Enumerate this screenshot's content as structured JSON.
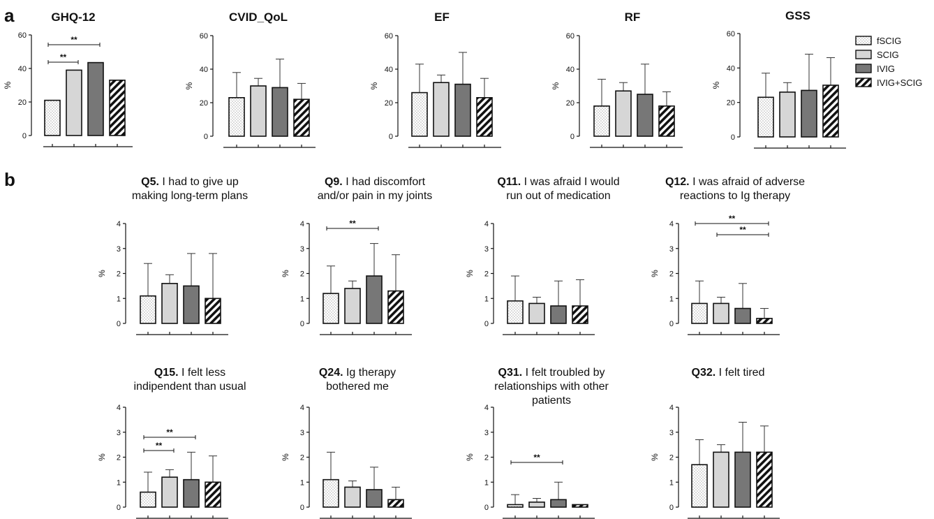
{
  "panel_labels": {
    "a": "a",
    "b": "b"
  },
  "legend": [
    {
      "label": "fSCIG",
      "pattern": "dots"
    },
    {
      "label": "SCIG",
      "pattern": "light"
    },
    {
      "label": "IVIG",
      "pattern": "dark"
    },
    {
      "label": "IVIG+SCIG",
      "pattern": "hatch"
    }
  ],
  "colors": {
    "light_gray": "#d6d6d6",
    "dark_gray": "#777777",
    "stroke": "#111111"
  },
  "chart_data": [
    {
      "id": "ghq12",
      "type": "bar",
      "panel": "a",
      "title": "GHQ-12",
      "title_bold": "",
      "ylabel": "%",
      "ylim": [
        0,
        60
      ],
      "yticks": [
        0,
        20,
        40,
        60
      ],
      "categories": [
        "fSCIG",
        "SCIG",
        "IVIG",
        "IVIG+SCIG"
      ],
      "values": [
        21,
        39,
        43.5,
        33
      ],
      "errors": [
        null,
        null,
        null,
        null
      ],
      "significance": [
        {
          "from": 0,
          "to": 2,
          "label": "**"
        },
        {
          "from": 0,
          "to": 1,
          "label": "**"
        }
      ]
    },
    {
      "id": "cvid_qol",
      "type": "bar",
      "panel": "a",
      "title": "CVID_QoL",
      "title_bold": "",
      "ylabel": "%",
      "ylim": [
        0,
        60
      ],
      "yticks": [
        0,
        20,
        40,
        60
      ],
      "categories": [
        "fSCIG",
        "SCIG",
        "IVIG",
        "IVIG+SCIG"
      ],
      "values": [
        23,
        30,
        29,
        22
      ],
      "errors": [
        15,
        4.5,
        17,
        9.5
      ],
      "significance": []
    },
    {
      "id": "ef",
      "type": "bar",
      "panel": "a",
      "title": "EF",
      "title_bold": "",
      "ylabel": "%",
      "ylim": [
        0,
        60
      ],
      "yticks": [
        0,
        20,
        40,
        60
      ],
      "categories": [
        "fSCIG",
        "SCIG",
        "IVIG",
        "IVIG+SCIG"
      ],
      "values": [
        26,
        32,
        31,
        23
      ],
      "errors": [
        17,
        4.5,
        19,
        11.5
      ],
      "significance": []
    },
    {
      "id": "rf",
      "type": "bar",
      "panel": "a",
      "title": "RF",
      "title_bold": "",
      "ylabel": "%",
      "ylim": [
        0,
        60
      ],
      "yticks": [
        0,
        20,
        40,
        60
      ],
      "categories": [
        "fSCIG",
        "SCIG",
        "IVIG",
        "IVIG+SCIG"
      ],
      "values": [
        18,
        27,
        25,
        18
      ],
      "errors": [
        16,
        5,
        18,
        8.5
      ],
      "significance": []
    },
    {
      "id": "gss",
      "type": "bar",
      "panel": "a",
      "title": "GSS",
      "title_bold": "",
      "ylabel": "%",
      "ylim": [
        0,
        60
      ],
      "yticks": [
        0,
        20,
        40,
        60
      ],
      "categories": [
        "fSCIG",
        "SCIG",
        "IVIG",
        "IVIG+SCIG"
      ],
      "values": [
        23,
        26,
        27,
        30
      ],
      "errors": [
        14,
        5.5,
        21,
        16
      ],
      "significance": []
    },
    {
      "id": "q5",
      "type": "bar",
      "panel": "b",
      "title_bold": "Q5.",
      "title": " I had to give up\nmaking long-term plans",
      "ylabel": "%",
      "ylim": [
        0,
        4
      ],
      "yticks": [
        0,
        1,
        2,
        3,
        4
      ],
      "categories": [
        "fSCIG",
        "SCIG",
        "IVIG",
        "IVIG+SCIG"
      ],
      "values": [
        1.1,
        1.6,
        1.5,
        1.0
      ],
      "errors": [
        1.3,
        0.35,
        1.3,
        1.8
      ],
      "significance": []
    },
    {
      "id": "q9",
      "type": "bar",
      "panel": "b",
      "title_bold": "Q9.",
      "title": " I had discomfort\nand/or pain in my joints",
      "ylabel": "%",
      "ylim": [
        0,
        4
      ],
      "yticks": [
        0,
        1,
        2,
        3,
        4
      ],
      "categories": [
        "fSCIG",
        "SCIG",
        "IVIG",
        "IVIG+SCIG"
      ],
      "values": [
        1.2,
        1.4,
        1.9,
        1.3
      ],
      "errors": [
        1.1,
        0.3,
        1.3,
        1.45
      ],
      "significance": [
        {
          "from": 0,
          "to": 2,
          "label": "**"
        }
      ]
    },
    {
      "id": "q11",
      "type": "bar",
      "panel": "b",
      "title_bold": "Q11.",
      "title": " I was afraid I would\nrun out of medication",
      "ylabel": "%",
      "ylim": [
        0,
        4
      ],
      "yticks": [
        0,
        1,
        2,
        3,
        4
      ],
      "categories": [
        "fSCIG",
        "SCIG",
        "IVIG",
        "IVIG+SCIG"
      ],
      "values": [
        0.9,
        0.8,
        0.7,
        0.7
      ],
      "errors": [
        1.0,
        0.25,
        1.0,
        1.05
      ],
      "significance": []
    },
    {
      "id": "q12",
      "type": "bar",
      "panel": "b",
      "title_bold": "Q12.",
      "title": " I was afraid of adverse\nreactions to Ig therapy",
      "ylabel": "%",
      "ylim": [
        0,
        4
      ],
      "yticks": [
        0,
        1,
        2,
        3,
        4
      ],
      "categories": [
        "fSCIG",
        "SCIG",
        "IVIG",
        "IVIG+SCIG"
      ],
      "values": [
        0.8,
        0.8,
        0.6,
        0.2
      ],
      "errors": [
        0.9,
        0.25,
        1.0,
        0.4
      ],
      "significance": [
        {
          "from": 0,
          "to": 3,
          "label": "**"
        },
        {
          "from": 1,
          "to": 3,
          "label": "**"
        }
      ]
    },
    {
      "id": "q15",
      "type": "bar",
      "panel": "b",
      "title_bold": "Q15.",
      "title": " I felt less\nindipendent than usual",
      "ylabel": "%",
      "ylim": [
        0,
        4
      ],
      "yticks": [
        0,
        1,
        2,
        3,
        4
      ],
      "categories": [
        "fSCIG",
        "SCIG",
        "IVIG",
        "IVIG+SCIG"
      ],
      "values": [
        0.6,
        1.2,
        1.1,
        1.0
      ],
      "errors": [
        0.8,
        0.3,
        1.1,
        1.05
      ],
      "significance": [
        {
          "from": 0,
          "to": 2,
          "label": "**"
        },
        {
          "from": 0,
          "to": 1,
          "label": "**"
        }
      ]
    },
    {
      "id": "q24",
      "type": "bar",
      "panel": "b",
      "title_bold": "Q24.",
      "title": " Ig therapy\nbothered me",
      "ylabel": "%",
      "ylim": [
        0,
        4
      ],
      "yticks": [
        0,
        1,
        2,
        3,
        4
      ],
      "categories": [
        "fSCIG",
        "SCIG",
        "IVIG",
        "IVIG+SCIG"
      ],
      "values": [
        1.1,
        0.8,
        0.7,
        0.3
      ],
      "errors": [
        1.1,
        0.25,
        0.9,
        0.5
      ],
      "significance": []
    },
    {
      "id": "q31",
      "type": "bar",
      "panel": "b",
      "title_bold": "Q31.",
      "title": " I felt troubled by\nrelationships with other\npatients",
      "ylabel": "%",
      "ylim": [
        0,
        4
      ],
      "yticks": [
        0,
        1,
        2,
        3,
        4
      ],
      "categories": [
        "fSCIG",
        "SCIG",
        "IVIG",
        "IVIG+SCIG"
      ],
      "values": [
        0.1,
        0.2,
        0.3,
        0.1
      ],
      "errors": [
        0.4,
        0.15,
        0.7,
        0.0
      ],
      "significance": [
        {
          "from": 0,
          "to": 2,
          "label": "**"
        }
      ]
    },
    {
      "id": "q32",
      "type": "bar",
      "panel": "b",
      "title_bold": "Q32.",
      "title": " I felt tired",
      "ylabel": "%",
      "ylim": [
        0,
        4
      ],
      "yticks": [
        0,
        1,
        2,
        3,
        4
      ],
      "categories": [
        "fSCIG",
        "SCIG",
        "IVIG",
        "IVIG+SCIG"
      ],
      "values": [
        1.7,
        2.2,
        2.2,
        2.2
      ],
      "errors": [
        1.0,
        0.3,
        1.2,
        1.05
      ],
      "significance": []
    }
  ]
}
